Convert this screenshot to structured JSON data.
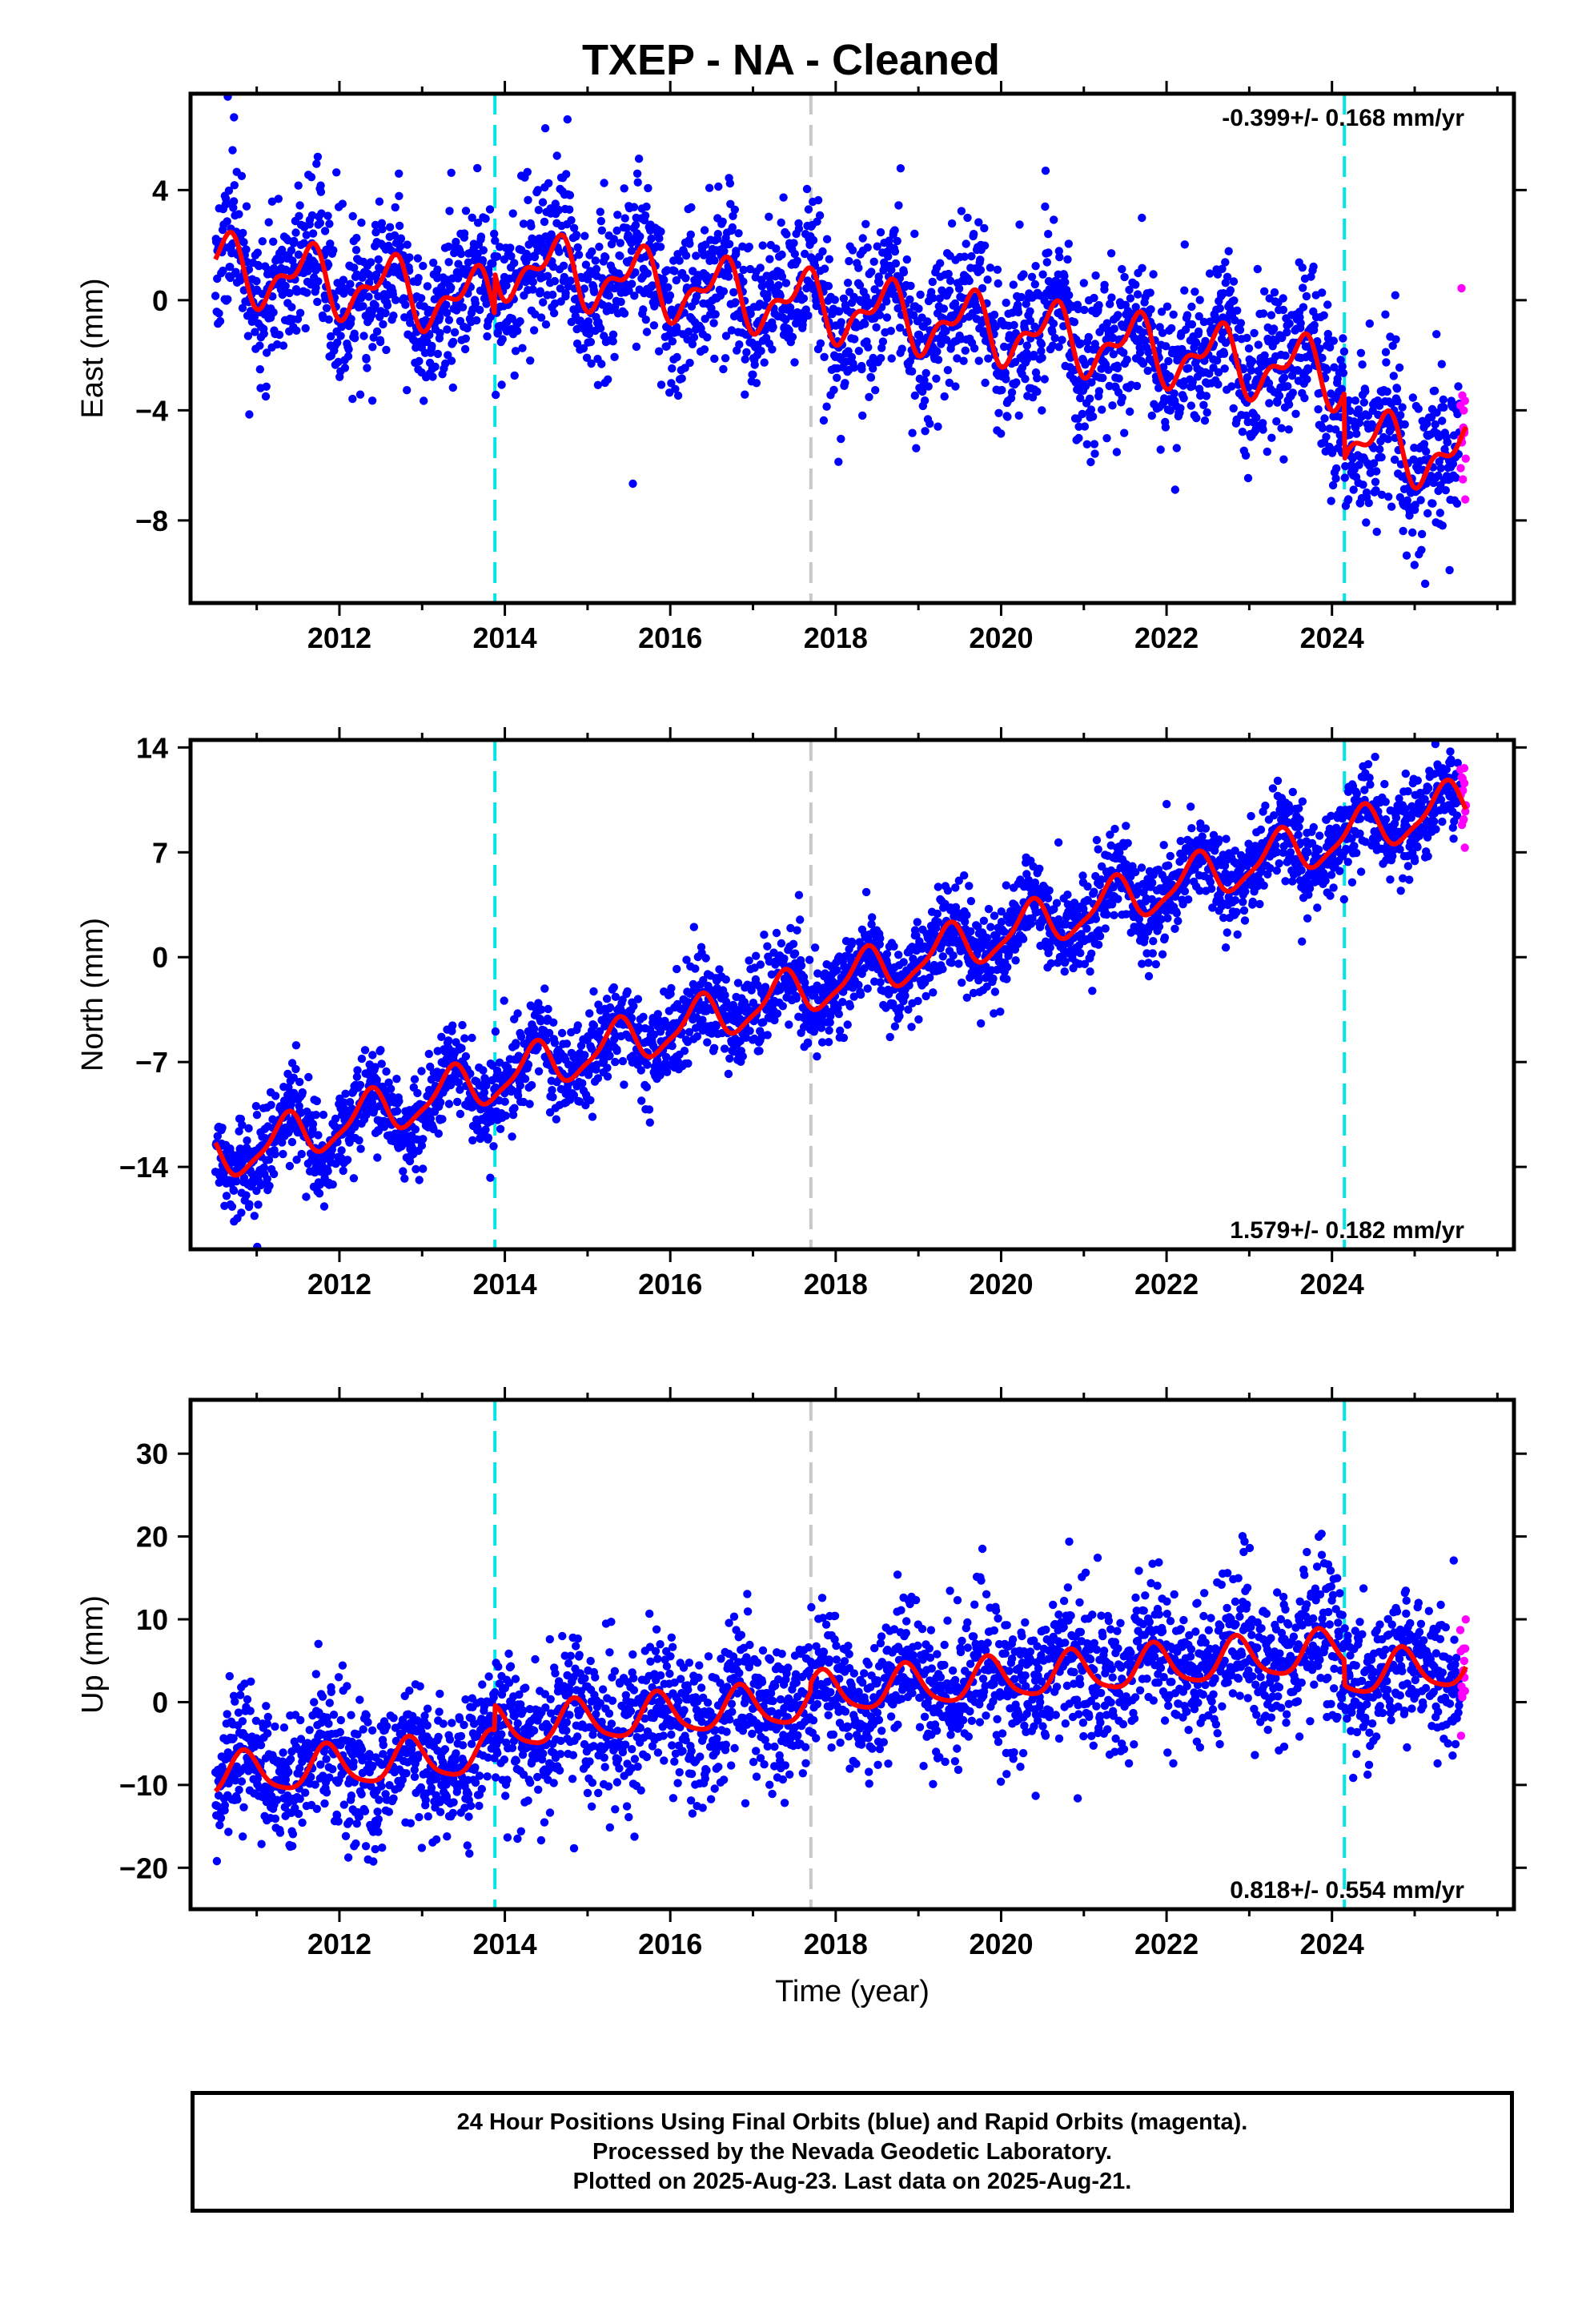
{
  "title": "TXEP  - NA - Cleaned",
  "footer": {
    "line1": "24 Hour Positions Using Final Orbits (blue) and Rapid Orbits (magenta).",
    "line2": "Processed by the Nevada Geodetic Laboratory.",
    "line3": "Plotted on 2025-Aug-23. Last data on 2025-Aug-21."
  },
  "colors": {
    "final_orbits": "#0000ff",
    "rapid_orbits": "#ff00ff",
    "model": "#ff0000",
    "equipment_change": "#00e5e5",
    "earthquake": "#c8c8c8"
  },
  "chart_data": [
    {
      "type": "scatter",
      "panel": "east",
      "ylabel": "East (mm)",
      "xlabel": "",
      "xlim": [
        2010.2,
        2026.2
      ],
      "ylim": [
        -11.0,
        7.5
      ],
      "xticks": [
        2012,
        2014,
        2016,
        2018,
        2020,
        2022,
        2024
      ],
      "yticks": [
        -8,
        -4,
        0,
        4
      ],
      "rate": "-0.399+/- 0.168 mm/yr",
      "rate_position": "top-right",
      "data_start": 2010.5,
      "data_end": 2025.62,
      "rapid_start": 2025.55,
      "offset_lines": {
        "cyan": [
          2013.88,
          2024.15
        ],
        "gray": [
          2017.7
        ]
      },
      "model_line": {
        "series": "model",
        "offset": 1.2,
        "slope": -0.399,
        "ref_year": 2010.5,
        "annual": 1.0,
        "annual_phase": 0.35,
        "semiannual": 0.55,
        "semiannual_phase": 0.6,
        "steps": [
          {
            "year": 2013.88,
            "value": 1.5
          },
          {
            "year": 2024.15,
            "value": -2.4
          }
        ]
      },
      "scatter_sigma": 1.4,
      "points_per_year": 200,
      "seed": 11
    },
    {
      "type": "scatter",
      "panel": "north",
      "ylabel": "North (mm)",
      "xlabel": "",
      "xlim": [
        2010.2,
        2026.2
      ],
      "ylim": [
        -19.5,
        14.5
      ],
      "xticks": [
        2012,
        2014,
        2016,
        2018,
        2020,
        2022,
        2024
      ],
      "yticks": [
        -14,
        -7,
        0,
        7,
        14
      ],
      "rate": "1.579+/- 0.182 mm/yr",
      "rate_position": "bottom-right",
      "data_start": 2010.5,
      "data_end": 2025.62,
      "rapid_start": 2025.55,
      "offset_lines": {
        "cyan": [
          2013.88,
          2024.15
        ],
        "gray": [
          2017.7
        ]
      },
      "model_line": {
        "series": "model",
        "offset": -13.5,
        "slope": 1.579,
        "ref_year": 2010.5,
        "annual": 1.5,
        "annual_phase": 0.1,
        "semiannual": 0.4,
        "semiannual_phase": 0.3,
        "steps": []
      },
      "scatter_sigma": 1.5,
      "points_per_year": 200,
      "seed": 23
    },
    {
      "type": "scatter",
      "panel": "up",
      "ylabel": "Up (mm)",
      "xlabel": "Time (year)",
      "xlim": [
        2010.2,
        2026.2
      ],
      "ylim": [
        -25,
        36.5
      ],
      "xticks": [
        2012,
        2014,
        2016,
        2018,
        2020,
        2022,
        2024
      ],
      "yticks": [
        -20,
        -10,
        0,
        10,
        20,
        30
      ],
      "rate": "0.818+/- 0.554 mm/yr",
      "rate_position": "bottom-right",
      "data_start": 2010.5,
      "data_end": 2025.62,
      "rapid_start": 2025.55,
      "offset_lines": {
        "cyan": [
          2013.88,
          2024.15
        ],
        "gray": [
          2017.7
        ]
      },
      "model_line": {
        "series": "model",
        "offset": -9.0,
        "slope": 0.818,
        "ref_year": 2010.5,
        "annual": 2.5,
        "annual_phase": 0.6,
        "semiannual": 0.5,
        "semiannual_phase": 0.2,
        "steps": [
          {
            "year": 2013.88,
            "value": 3.0
          },
          {
            "year": 2017.7,
            "value": 1.0
          },
          {
            "year": 2024.15,
            "value": -3.0
          }
        ]
      },
      "scatter_sigma": 4.2,
      "points_per_year": 200,
      "seed": 37
    }
  ]
}
